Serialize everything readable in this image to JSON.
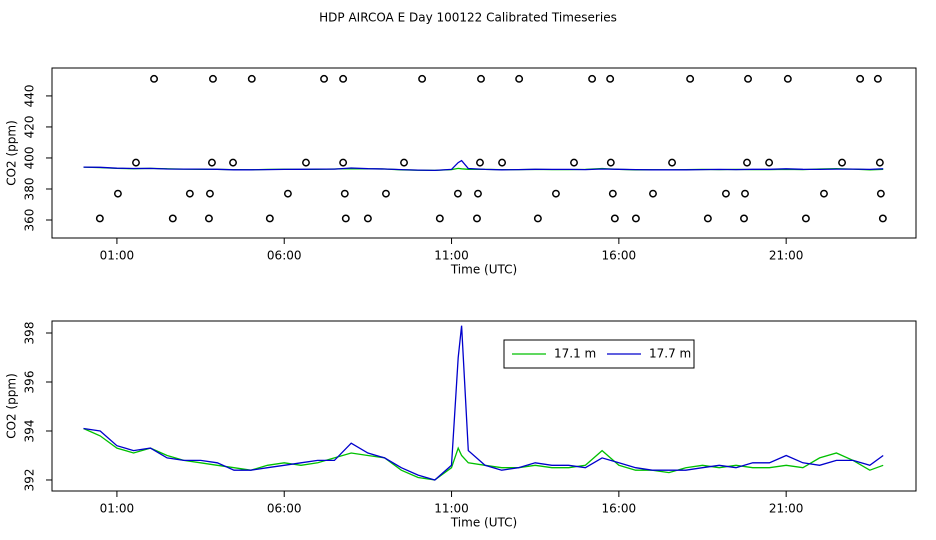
{
  "title": "HDP AIRCOA E  Day 100122  Calibrated Timeseries",
  "chart_data": [
    {
      "type": "line",
      "xlabel": "Time (UTC)",
      "ylabel": "CO2 (ppm)",
      "xlim": [
        -0.94,
        24.88
      ],
      "ylim": [
        348.4,
        458
      ],
      "xticks": [
        {
          "value": 1,
          "label": "01:00"
        },
        {
          "value": 6,
          "label": "06:00"
        },
        {
          "value": 11,
          "label": "11:00"
        },
        {
          "value": 16,
          "label": "16:00"
        },
        {
          "value": 21,
          "label": "21:00"
        }
      ],
      "yticks": [
        360,
        380,
        400,
        420,
        440
      ],
      "x": [
        0,
        0.5,
        1,
        1.5,
        2,
        2.5,
        3,
        3.5,
        4,
        4.5,
        5,
        5.5,
        6,
        6.5,
        7,
        7.5,
        8,
        8.5,
        9,
        9.5,
        10,
        10.5,
        11,
        11.2,
        11.3,
        11.5,
        12,
        12.5,
        13,
        13.5,
        14,
        14.5,
        15,
        15.5,
        16,
        16.5,
        17,
        17.5,
        18,
        18.5,
        19,
        19.5,
        20,
        20.5,
        21,
        21.5,
        22,
        22.5,
        23,
        23.5,
        23.9
      ],
      "series": [
        {
          "color": "#00c000",
          "values": [
            394.1,
            393.8,
            393.3,
            393.1,
            393.3,
            393.0,
            392.8,
            392.7,
            392.6,
            392.5,
            392.4,
            392.6,
            392.7,
            392.6,
            392.7,
            392.9,
            393.1,
            393.0,
            392.9,
            392.4,
            392.1,
            392.0,
            392.5,
            393.3,
            393.0,
            392.7,
            392.6,
            392.5,
            392.5,
            392.6,
            392.5,
            392.5,
            392.6,
            393.2,
            392.6,
            392.4,
            392.4,
            392.3,
            392.5,
            392.6,
            392.5,
            392.6,
            392.5,
            392.5,
            392.6,
            392.5,
            392.9,
            393.1,
            392.8,
            392.4,
            392.6
          ]
        },
        {
          "color": "#0000cc",
          "values": [
            394.1,
            394.0,
            393.4,
            393.2,
            393.3,
            392.9,
            392.8,
            392.8,
            392.7,
            392.4,
            392.4,
            392.5,
            392.6,
            392.7,
            392.8,
            392.8,
            393.5,
            393.1,
            392.9,
            392.5,
            392.2,
            392.0,
            392.6,
            397.0,
            398.3,
            393.2,
            392.6,
            392.4,
            392.5,
            392.7,
            392.6,
            392.6,
            392.5,
            392.9,
            392.7,
            392.5,
            392.4,
            392.4,
            392.4,
            392.5,
            392.6,
            392.5,
            392.7,
            392.7,
            393.0,
            392.7,
            392.6,
            392.8,
            392.8,
            392.6,
            393.0
          ]
        },
        {
          "color": "#000000",
          "marker": "circle",
          "x": [
            2.11,
            3.87,
            5.03,
            7.19,
            7.76,
            10.12,
            11.88,
            13.02,
            15.2,
            15.74,
            18.13,
            19.86,
            21.05,
            23.21,
            23.74,
            1.57,
            3.84,
            4.47,
            6.65,
            7.76,
            9.58,
            11.85,
            12.51,
            14.66,
            15.76,
            17.59,
            19.83,
            20.49,
            22.67,
            23.8,
            1.03,
            3.18,
            3.78,
            6.11,
            7.81,
            9.04,
            11.19,
            11.79,
            14.12,
            15.82,
            17.02,
            19.2,
            19.77,
            22.13,
            23.83,
            0.49,
            2.67,
            3.75,
            5.57,
            7.84,
            8.5,
            10.65,
            11.76,
            13.58,
            15.88,
            16.51,
            18.66,
            19.74,
            21.59,
            23.89
          ],
          "values": [
            451,
            451,
            451,
            451,
            451,
            451,
            451,
            451,
            451,
            451,
            451,
            451,
            451,
            451,
            451,
            397,
            397,
            397,
            397,
            397,
            397,
            397,
            397,
            397,
            397,
            397,
            397,
            397,
            397,
            397,
            377,
            377,
            377,
            377,
            377,
            377,
            377,
            377,
            377,
            377,
            377,
            377,
            377,
            377,
            377,
            361,
            361,
            361,
            361,
            361,
            361,
            361,
            361,
            361,
            361,
            361,
            361,
            361,
            361,
            361
          ]
        }
      ]
    },
    {
      "type": "line",
      "xlabel": "Time (UTC)",
      "ylabel": "CO2 (ppm)",
      "xlim": [
        -0.94,
        24.88
      ],
      "ylim": [
        391.55,
        398.49
      ],
      "xticks": [
        {
          "value": 1,
          "label": "01:00"
        },
        {
          "value": 6,
          "label": "06:00"
        },
        {
          "value": 11,
          "label": "11:00"
        },
        {
          "value": 16,
          "label": "16:00"
        },
        {
          "value": 21,
          "label": "21:00"
        }
      ],
      "yticks": [
        392,
        394,
        396,
        398
      ],
      "legend": "top-center",
      "x": [
        0,
        0.5,
        1,
        1.5,
        2,
        2.5,
        3,
        3.5,
        4,
        4.5,
        5,
        5.5,
        6,
        6.5,
        7,
        7.5,
        8,
        8.5,
        9,
        9.5,
        10,
        10.5,
        11,
        11.2,
        11.3,
        11.5,
        12,
        12.5,
        13,
        13.5,
        14,
        14.5,
        15,
        15.5,
        16,
        16.5,
        17,
        17.5,
        18,
        18.5,
        19,
        19.5,
        20,
        20.5,
        21,
        21.5,
        22,
        22.5,
        23,
        23.5,
        23.9
      ],
      "series": [
        {
          "name": "17.1 m",
          "color": "#00c000",
          "values": [
            394.1,
            393.8,
            393.3,
            393.1,
            393.3,
            393.0,
            392.8,
            392.7,
            392.6,
            392.5,
            392.4,
            392.6,
            392.7,
            392.6,
            392.7,
            392.9,
            393.1,
            393.0,
            392.9,
            392.4,
            392.1,
            392.0,
            392.5,
            393.3,
            393.0,
            392.7,
            392.6,
            392.5,
            392.5,
            392.6,
            392.5,
            392.5,
            392.6,
            393.2,
            392.6,
            392.4,
            392.4,
            392.3,
            392.5,
            392.6,
            392.5,
            392.6,
            392.5,
            392.5,
            392.6,
            392.5,
            392.9,
            393.1,
            392.8,
            392.4,
            392.6
          ]
        },
        {
          "name": "17.7 m",
          "color": "#0000cc",
          "values": [
            394.1,
            394.0,
            393.4,
            393.2,
            393.3,
            392.9,
            392.8,
            392.8,
            392.7,
            392.4,
            392.4,
            392.5,
            392.6,
            392.7,
            392.8,
            392.8,
            393.5,
            393.1,
            392.9,
            392.5,
            392.2,
            392.0,
            392.6,
            397.0,
            398.3,
            393.2,
            392.6,
            392.4,
            392.5,
            392.7,
            392.6,
            392.6,
            392.5,
            392.9,
            392.7,
            392.5,
            392.4,
            392.4,
            392.4,
            392.5,
            392.6,
            392.5,
            392.7,
            392.7,
            393.0,
            392.7,
            392.6,
            392.8,
            392.8,
            392.6,
            393.0
          ]
        }
      ]
    }
  ]
}
